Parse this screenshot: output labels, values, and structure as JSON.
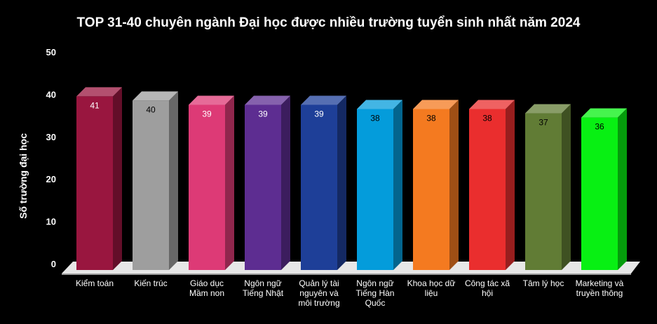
{
  "chart_data": {
    "type": "bar",
    "title": "TOP 31-40 chuyên ngành Đại học được nhiều trường tuyển sinh nhất năm 2024",
    "xlabel": "",
    "ylabel": "Số trường đại học",
    "ylim": [
      0,
      50
    ],
    "yticks": [
      0,
      10,
      20,
      30,
      40,
      50
    ],
    "grid": false,
    "legend": "none",
    "categories": [
      [
        "Kiểm toán"
      ],
      [
        "Kiến trúc"
      ],
      [
        "Giáo dục",
        "Mầm non"
      ],
      [
        "Ngôn ngữ",
        "Tiếng Nhật"
      ],
      [
        "Quản lý tài",
        "nguyên và",
        "môi trường"
      ],
      [
        "Ngôn ngữ",
        "Tiếng Hàn",
        "Quốc"
      ],
      [
        "Khoa học dữ",
        "liệu"
      ],
      [
        "Công tác xã",
        "hội"
      ],
      [
        "Tâm lý học"
      ],
      [
        "Marketing và",
        "truyền thông"
      ]
    ],
    "values": [
      41,
      40,
      39,
      39,
      39,
      38,
      38,
      38,
      37,
      36
    ],
    "value_label_colors": [
      "#ffffff",
      "#000000",
      "#ffffff",
      "#ffffff",
      "#ffffff",
      "#000000",
      "#000000",
      "#000000",
      "#000000",
      "#000000"
    ],
    "colors": [
      "#99163f",
      "#9e9e9e",
      "#dd3a76",
      "#5d2d91",
      "#1e3f98",
      "#049cdb",
      "#f47a20",
      "#ea2e2e",
      "#617c35",
      "#08f013"
    ]
  }
}
